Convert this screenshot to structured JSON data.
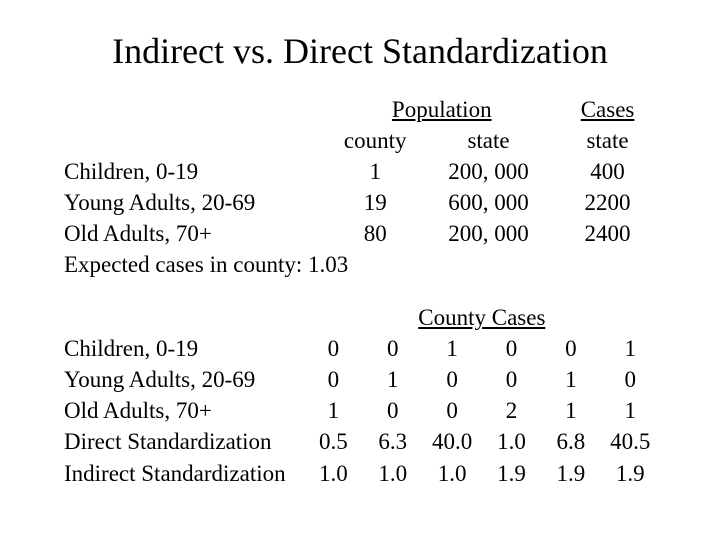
{
  "title": "Indirect vs. Direct Standardization",
  "t1": {
    "h_pop": "Population",
    "h_cases": "Cases",
    "sub_county": "county",
    "sub_state1": "state",
    "sub_state2": "state",
    "rows": [
      {
        "label": "Children, 0-19",
        "county": "1",
        "state_pop": "200, 000",
        "cases": "400"
      },
      {
        "label": "Young Adults, 20-69",
        "county": "19",
        "state_pop": "600, 000",
        "cases": "2200"
      },
      {
        "label": "Old Adults, 70+",
        "county": "80",
        "state_pop": "200, 000",
        "cases": "2400"
      }
    ],
    "expected": "Expected cases in county: 1.03"
  },
  "t2": {
    "h_cc": "County Cases",
    "rows": [
      {
        "label": "Children, 0-19",
        "v": [
          "0",
          "0",
          "1",
          "0",
          "0",
          "1"
        ]
      },
      {
        "label": "Young Adults, 20-69",
        "v": [
          "0",
          "1",
          "0",
          "0",
          "1",
          "0"
        ]
      },
      {
        "label": "Old Adults, 70+",
        "v": [
          "1",
          "0",
          "0",
          "2",
          "1",
          "1"
        ]
      },
      {
        "label": "Direct Standardization",
        "v": [
          "0.5",
          "6.3",
          "40.0",
          "1.0",
          "6.8",
          "40.5"
        ]
      },
      {
        "label": "Indirect Standardization",
        "v": [
          "1.0",
          "1.0",
          "1.0",
          "1.9",
          "1.9",
          "1.9"
        ]
      }
    ]
  }
}
